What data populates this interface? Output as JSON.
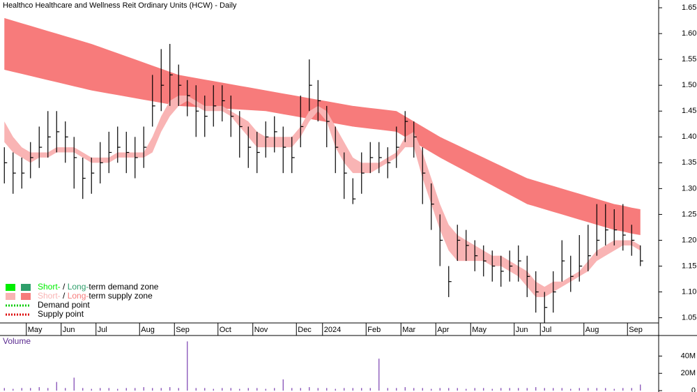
{
  "chart_data": [
    {
      "type": "ohlc",
      "title": "Healthco Healthcare and Wellness Reit Ordinary Units (HCW) - Daily",
      "categories": [
        null,
        null,
        null,
        "May",
        null,
        null,
        null,
        "Jun",
        null,
        null,
        null,
        "Jul",
        null,
        null,
        null,
        null,
        "Aug",
        null,
        null,
        null,
        "Sep",
        null,
        null,
        null,
        null,
        "Oct",
        null,
        null,
        null,
        "Nov",
        null,
        null,
        null,
        null,
        "Dec",
        null,
        null,
        "2024",
        null,
        null,
        null,
        null,
        "Feb",
        null,
        null,
        null,
        "Mar",
        null,
        null,
        null,
        "Apr",
        null,
        null,
        null,
        "May",
        null,
        null,
        null,
        null,
        "Jun",
        null,
        null,
        "Jul",
        null,
        null,
        null,
        null,
        "Aug",
        null,
        null,
        null,
        null,
        "Sep",
        null
      ],
      "high": [
        1.38,
        1.37,
        1.36,
        1.39,
        1.42,
        1.45,
        1.45,
        1.43,
        1.4,
        1.36,
        1.36,
        1.39,
        1.41,
        1.42,
        1.41,
        1.4,
        1.42,
        1.52,
        1.57,
        1.58,
        1.54,
        1.51,
        1.5,
        1.48,
        1.5,
        1.5,
        1.48,
        1.45,
        1.42,
        1.41,
        1.43,
        1.44,
        1.42,
        1.4,
        1.48,
        1.55,
        1.51,
        1.46,
        1.42,
        1.37,
        1.32,
        1.37,
        1.39,
        1.39,
        1.38,
        1.42,
        1.45,
        1.43,
        1.38,
        1.31,
        1.25,
        1.15,
        1.23,
        1.22,
        1.2,
        1.19,
        1.18,
        1.17,
        1.18,
        1.19,
        1.17,
        1.14,
        1.1,
        1.14,
        1.2,
        1.17,
        1.21,
        1.23,
        1.27,
        1.27,
        1.26,
        1.27,
        1.23,
        1.19
      ],
      "low": [
        1.31,
        1.29,
        1.3,
        1.32,
        1.34,
        1.36,
        1.37,
        1.35,
        1.3,
        1.28,
        1.29,
        1.31,
        1.33,
        1.35,
        1.33,
        1.32,
        1.34,
        1.42,
        1.45,
        1.46,
        1.46,
        1.44,
        1.4,
        1.4,
        1.42,
        1.43,
        1.4,
        1.36,
        1.34,
        1.33,
        1.36,
        1.37,
        1.33,
        1.33,
        1.38,
        1.45,
        1.43,
        1.38,
        1.33,
        1.28,
        1.27,
        1.29,
        1.33,
        1.33,
        1.32,
        1.34,
        1.39,
        1.36,
        1.27,
        1.22,
        1.15,
        1.09,
        1.16,
        1.16,
        1.14,
        1.13,
        1.12,
        1.11,
        1.12,
        1.12,
        1.09,
        1.06,
        1.04,
        1.06,
        1.12,
        1.1,
        1.12,
        1.14,
        1.17,
        1.19,
        1.19,
        1.18,
        1.17,
        1.15
      ],
      "close": [
        1.35,
        1.33,
        1.33,
        1.36,
        1.38,
        1.4,
        1.41,
        1.4,
        1.36,
        1.32,
        1.33,
        1.35,
        1.37,
        1.38,
        1.37,
        1.36,
        1.38,
        1.46,
        1.5,
        1.52,
        1.5,
        1.48,
        1.45,
        1.44,
        1.46,
        1.47,
        1.44,
        1.42,
        1.38,
        1.37,
        1.4,
        1.41,
        1.38,
        1.36,
        1.42,
        1.5,
        1.47,
        1.43,
        1.38,
        1.33,
        1.28,
        1.33,
        1.36,
        1.36,
        1.35,
        1.38,
        1.43,
        1.4,
        1.33,
        1.27,
        1.2,
        1.12,
        1.2,
        1.19,
        1.17,
        1.16,
        1.15,
        1.14,
        1.15,
        1.16,
        1.13,
        1.1,
        1.07,
        1.1,
        1.16,
        1.13,
        1.15,
        1.17,
        1.2,
        1.22,
        1.22,
        1.21,
        1.2,
        1.16
      ],
      "color": "#000000",
      "bands": [
        {
          "color": "#f77b7b",
          "upper": [
            1.63,
            1.625,
            1.62,
            1.615,
            1.61,
            1.605,
            1.6,
            1.595,
            1.59,
            1.585,
            1.58,
            1.574,
            1.568,
            1.562,
            1.556,
            1.55,
            1.544,
            1.538,
            1.532,
            1.526,
            1.52,
            1.517,
            1.514,
            1.511,
            1.508,
            1.505,
            1.502,
            1.499,
            1.496,
            1.493,
            1.49,
            1.487,
            1.484,
            1.481,
            1.478,
            1.475,
            1.472,
            1.469,
            1.466,
            1.463,
            1.46,
            1.458,
            1.456,
            1.454,
            1.452,
            1.45,
            1.44,
            1.43,
            1.42,
            1.41,
            1.4,
            1.392,
            1.384,
            1.376,
            1.368,
            1.36,
            1.352,
            1.344,
            1.336,
            1.328,
            1.32,
            1.315,
            1.31,
            1.305,
            1.3,
            1.295,
            1.29,
            1.285,
            1.28,
            1.275,
            1.27,
            1.267,
            1.263,
            1.26
          ],
          "lower": [
            1.53,
            1.526,
            1.522,
            1.518,
            1.514,
            1.51,
            1.506,
            1.502,
            1.498,
            1.494,
            1.49,
            1.487,
            1.484,
            1.481,
            1.478,
            1.475,
            1.472,
            1.469,
            1.466,
            1.463,
            1.46,
            1.459,
            1.458,
            1.457,
            1.456,
            1.455,
            1.454,
            1.453,
            1.452,
            1.451,
            1.45,
            1.447,
            1.444,
            1.441,
            1.438,
            1.435,
            1.432,
            1.429,
            1.426,
            1.423,
            1.42,
            1.418,
            1.416,
            1.414,
            1.412,
            1.41,
            1.4,
            1.39,
            1.38,
            1.37,
            1.36,
            1.351,
            1.342,
            1.333,
            1.324,
            1.315,
            1.306,
            1.297,
            1.288,
            1.279,
            1.27,
            1.265,
            1.26,
            1.255,
            1.25,
            1.245,
            1.24,
            1.235,
            1.23,
            1.225,
            1.22,
            1.217,
            1.213,
            1.21
          ]
        },
        {
          "color": "#f9b4b4",
          "upper": [
            1.43,
            1.4,
            1.38,
            1.37,
            1.37,
            1.37,
            1.38,
            1.38,
            1.38,
            1.37,
            1.36,
            1.36,
            1.36,
            1.37,
            1.37,
            1.37,
            1.37,
            1.4,
            1.44,
            1.47,
            1.48,
            1.48,
            1.47,
            1.46,
            1.46,
            1.46,
            1.45,
            1.44,
            1.43,
            1.41,
            1.4,
            1.4,
            1.4,
            1.4,
            1.42,
            1.45,
            1.46,
            1.45,
            1.42,
            1.39,
            1.36,
            1.35,
            1.35,
            1.35,
            1.36,
            1.37,
            1.4,
            1.41,
            1.37,
            1.32,
            1.27,
            1.23,
            1.21,
            1.2,
            1.19,
            1.18,
            1.17,
            1.17,
            1.16,
            1.15,
            1.14,
            1.12,
            1.11,
            1.12,
            1.12,
            1.13,
            1.14,
            1.16,
            1.18,
            1.19,
            1.2,
            1.2,
            1.2,
            1.19
          ],
          "lower": [
            1.39,
            1.37,
            1.36,
            1.35,
            1.36,
            1.36,
            1.37,
            1.37,
            1.37,
            1.36,
            1.35,
            1.35,
            1.35,
            1.36,
            1.36,
            1.36,
            1.36,
            1.37,
            1.41,
            1.44,
            1.46,
            1.47,
            1.46,
            1.45,
            1.45,
            1.45,
            1.44,
            1.42,
            1.4,
            1.38,
            1.38,
            1.38,
            1.38,
            1.38,
            1.4,
            1.43,
            1.45,
            1.43,
            1.38,
            1.35,
            1.33,
            1.33,
            1.33,
            1.34,
            1.35,
            1.36,
            1.38,
            1.38,
            1.32,
            1.27,
            1.22,
            1.18,
            1.16,
            1.16,
            1.16,
            1.16,
            1.15,
            1.15,
            1.14,
            1.13,
            1.11,
            1.09,
            1.09,
            1.1,
            1.11,
            1.12,
            1.13,
            1.14,
            1.16,
            1.17,
            1.18,
            1.19,
            1.19,
            1.18
          ]
        }
      ],
      "ylim": [
        1.017,
        1.665
      ],
      "yticks": [
        1.05,
        {
          "value": 1.1,
          "label": "1.10"
        },
        1.15,
        {
          "value": 1.2,
          "label": "1.20"
        },
        1.25,
        {
          "value": 1.3,
          "label": "1.30"
        },
        1.35,
        {
          "value": 1.4,
          "label": "1.40"
        },
        1.45,
        {
          "value": 1.5,
          "label": "1.50"
        },
        1.55,
        {
          "value": 1.6,
          "label": "1.60"
        },
        1.65
      ],
      "legend": [
        {
          "parts": [
            "Short-",
            " / ",
            "Long-",
            "term demand zone"
          ],
          "colors": [
            "#00ee00",
            "#2e9e6a"
          ]
        },
        {
          "parts": [
            "Short-",
            " / ",
            "Long-",
            "term supply zone"
          ],
          "colors": [
            "#f9b4b4",
            "#f77b7b"
          ]
        },
        {
          "parts": [
            "Demand point"
          ],
          "colors": [
            "#00cc00"
          ]
        },
        {
          "parts": [
            "Supply point"
          ],
          "colors": [
            "#dd0000"
          ]
        }
      ]
    },
    {
      "type": "bar",
      "title": "Volume",
      "values": [
        3000000,
        2000000,
        3000000,
        3000000,
        4000000,
        3000000,
        10000000,
        3000000,
        15000000,
        3000000,
        2000000,
        3000000,
        3000000,
        2000000,
        3000000,
        3000000,
        4000000,
        3000000,
        3000000,
        4000000,
        3000000,
        57000000,
        3000000,
        3000000,
        2000000,
        3000000,
        3000000,
        2000000,
        3000000,
        3000000,
        2000000,
        3000000,
        13000000,
        3000000,
        3000000,
        4000000,
        3000000,
        3000000,
        2000000,
        3000000,
        3000000,
        3000000,
        3000000,
        37000000,
        3000000,
        3000000,
        4000000,
        3000000,
        3000000,
        2000000,
        3000000,
        3000000,
        3000000,
        2000000,
        3000000,
        3000000,
        2000000,
        3000000,
        3000000,
        3000000,
        3000000,
        4000000,
        3000000,
        3000000,
        3000000,
        2000000,
        3000000,
        3000000,
        3000000,
        3000000,
        2000000,
        3000000,
        3000000,
        7000000
      ],
      "color": "#7a3fb0",
      "ylim": [
        0,
        63000000
      ],
      "yticks": [
        0,
        {
          "value": 20000000,
          "label": "20M"
        },
        {
          "value": 40000000,
          "label": "40M"
        }
      ]
    }
  ]
}
